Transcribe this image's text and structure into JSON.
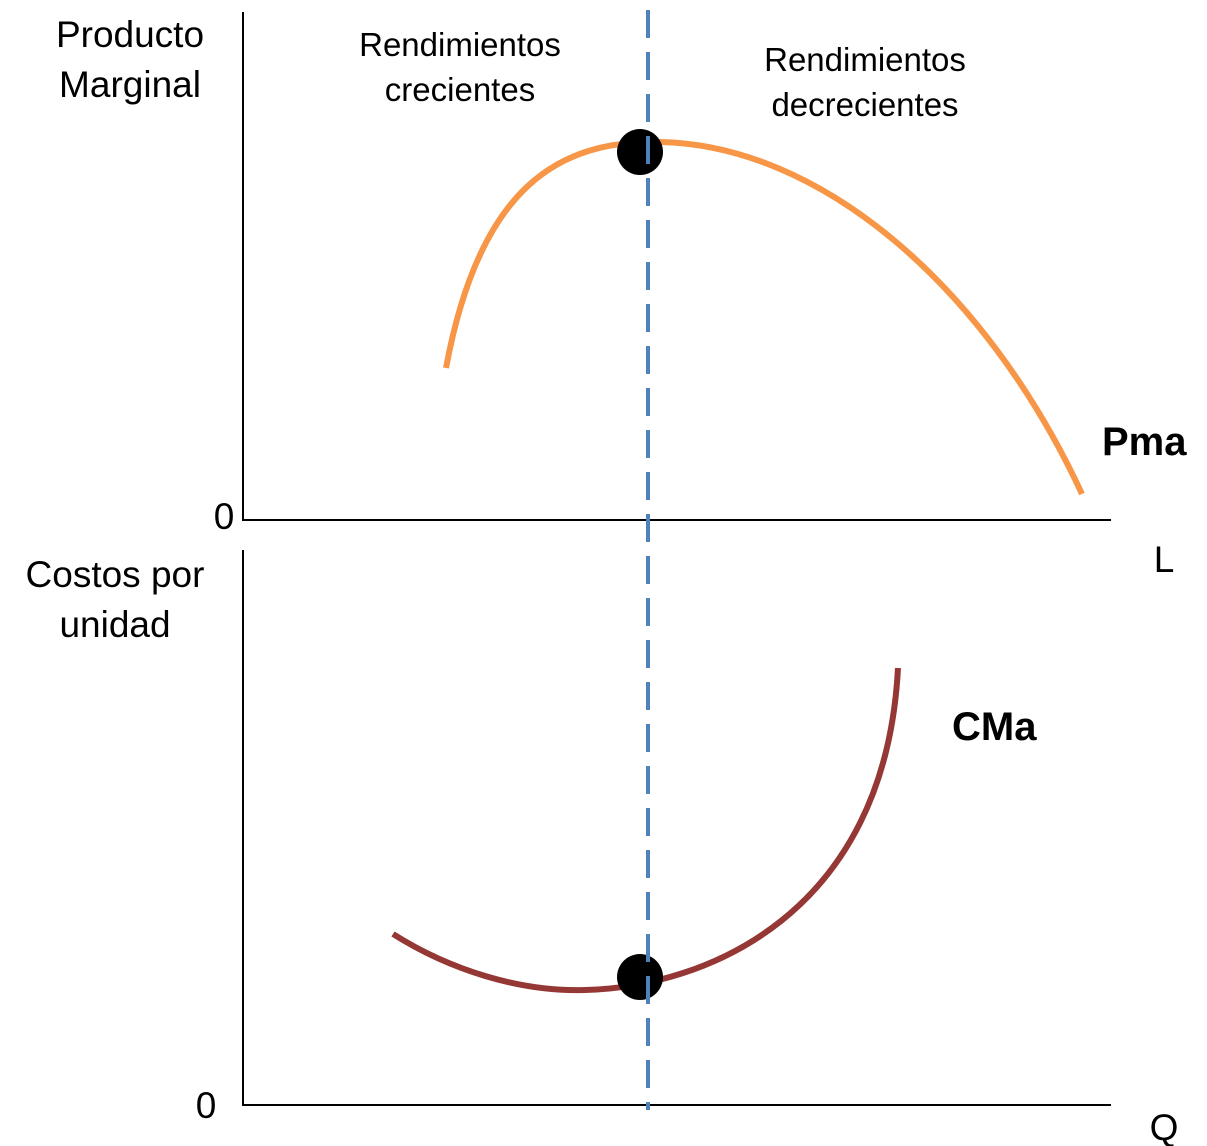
{
  "top_panel": {
    "y_label": [
      "Producto",
      "Marginal"
    ],
    "origin": "0",
    "x_label": "L",
    "curve_label": "Pma",
    "regions": [
      [
        "Rendimientos",
        "crecientes"
      ],
      [
        "Rendimientos",
        "decrecientes"
      ]
    ]
  },
  "bottom_panel": {
    "y_label": [
      "Costos por",
      "unidad"
    ],
    "origin": "0",
    "x_label": "Q",
    "curve_label": "CMa"
  }
}
